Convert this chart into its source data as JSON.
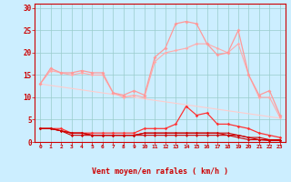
{
  "x": [
    0,
    1,
    2,
    3,
    4,
    5,
    6,
    7,
    8,
    9,
    10,
    11,
    12,
    13,
    14,
    15,
    16,
    17,
    18,
    19,
    20,
    21,
    22,
    23
  ],
  "y_upper_peak": [
    13,
    16.5,
    15.5,
    15.5,
    16,
    15.5,
    15.5,
    11,
    10.5,
    11.5,
    10.5,
    19,
    21,
    26.5,
    27,
    26.5,
    22,
    19.5,
    20,
    25,
    15,
    10.5,
    11.5,
    6
  ],
  "y_upper_smooth": [
    13,
    16,
    15.5,
    15,
    15.5,
    15,
    15,
    11,
    10,
    10.5,
    10,
    18,
    20,
    20.5,
    21,
    22,
    22,
    21,
    20,
    22,
    15,
    10,
    10,
    5.5
  ],
  "y_linear": [
    13,
    12.67,
    12.33,
    12,
    11.67,
    11.33,
    11,
    10.67,
    10.33,
    10,
    9.67,
    9.33,
    9,
    8.67,
    8.33,
    8,
    7.67,
    7.33,
    7,
    6.67,
    6.33,
    6,
    5.67,
    5.33
  ],
  "y_red_upper": [
    3,
    3,
    3,
    2,
    2,
    2,
    2,
    2,
    2,
    2,
    3,
    3,
    3,
    4,
    8,
    6,
    6.5,
    4,
    4,
    3.5,
    3,
    2,
    1.5,
    1
  ],
  "y_red_mid1": [
    3,
    3,
    2.5,
    2,
    2,
    1.5,
    1.5,
    1.5,
    1.5,
    1.5,
    2,
    2,
    2,
    2,
    2,
    2,
    2,
    2,
    2,
    1.5,
    1,
    1,
    0.5,
    0.5
  ],
  "y_red_mid2": [
    3,
    3,
    2.5,
    1.5,
    1.5,
    1.5,
    1.5,
    1.5,
    1.5,
    1.5,
    2,
    2,
    2,
    2,
    2,
    2,
    2,
    2,
    1.5,
    1.5,
    1,
    0.5,
    0.5,
    0.5
  ],
  "y_red_base": [
    3,
    3,
    2.5,
    2,
    2,
    1.5,
    1.5,
    1.5,
    1.5,
    1.5,
    1.5,
    1.5,
    1.5,
    1.5,
    1.5,
    1.5,
    1.5,
    1.5,
    1.5,
    1,
    0.5,
    0.5,
    0.3,
    0.3
  ],
  "wind_dirs": [
    180,
    180,
    180,
    225,
    225,
    225,
    180,
    225,
    225,
    225,
    270,
    270,
    270,
    270,
    270,
    270,
    315,
    315,
    315,
    315,
    45,
    45,
    45,
    45
  ],
  "xlabel": "Vent moyen/en rafales ( km/h )",
  "xlim": [
    -0.5,
    23.5
  ],
  "ylim": [
    0,
    31
  ],
  "yticks": [
    0,
    5,
    10,
    15,
    20,
    25,
    30
  ],
  "xticks": [
    0,
    1,
    2,
    3,
    4,
    5,
    6,
    7,
    8,
    9,
    10,
    11,
    12,
    13,
    14,
    15,
    16,
    17,
    18,
    19,
    20,
    21,
    22,
    23
  ],
  "bg_color": "#cceeff",
  "grid_color": "#99cccc",
  "tick_color": "#cc0000",
  "label_color": "#cc0000",
  "color_peak": "#ff9999",
  "color_smooth": "#ffaaaa",
  "color_linear": "#ffcccc",
  "color_red_upper": "#ff3333",
  "color_red_mid": "#cc0000",
  "color_red_base": "#cc0000"
}
